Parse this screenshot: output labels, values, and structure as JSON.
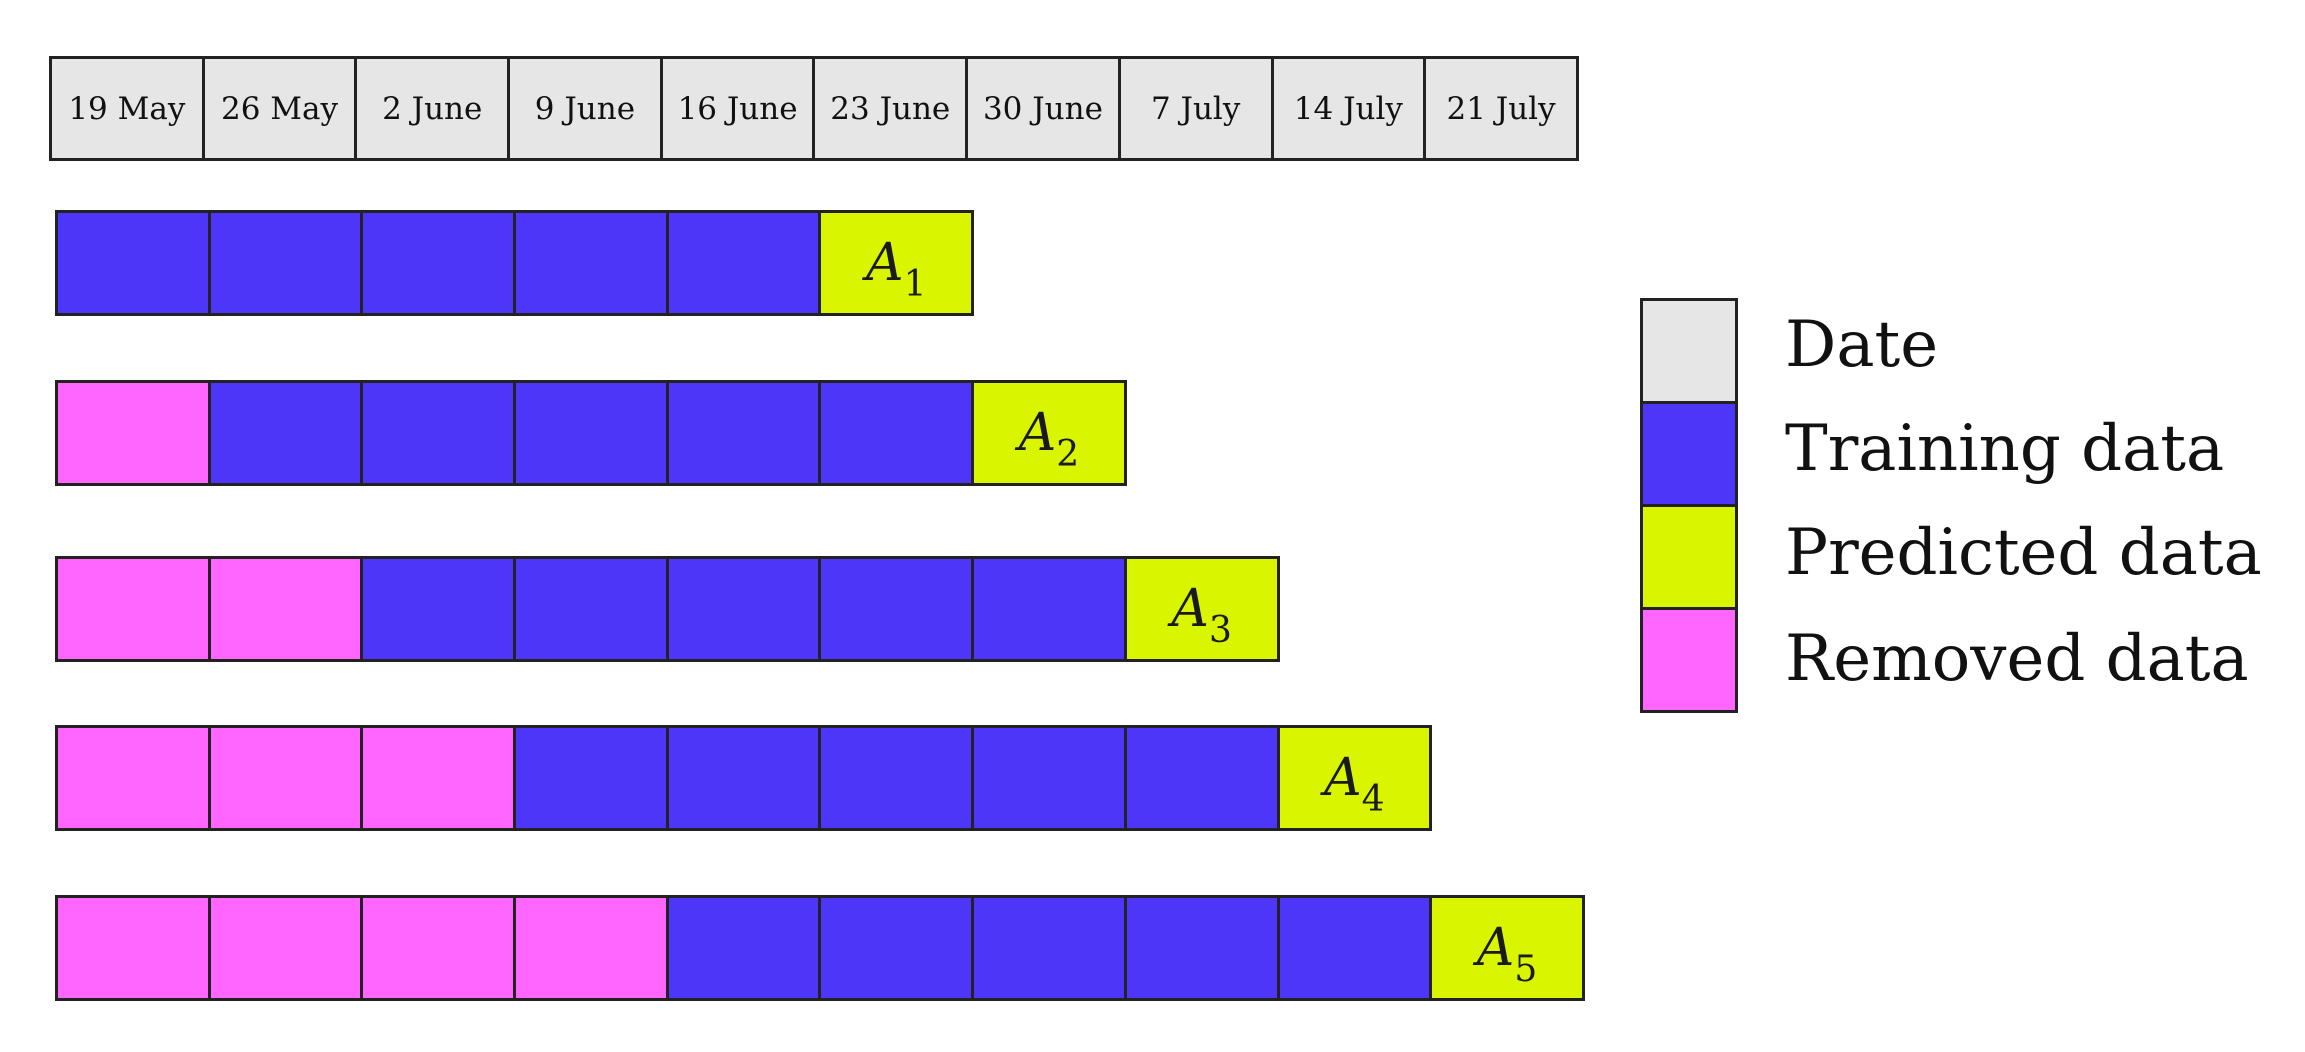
{
  "dates": [
    "19 May",
    "26 May",
    "2 June",
    "9 June",
    "16 June",
    "23 June",
    "30 June",
    "7 July",
    "14 July",
    "21 July"
  ],
  "rows": [
    {
      "removed": 0,
      "training": 5,
      "predicted_label": "A",
      "predicted_sub": "1"
    },
    {
      "removed": 1,
      "training": 5,
      "predicted_label": "A",
      "predicted_sub": "2"
    },
    {
      "removed": 2,
      "training": 5,
      "predicted_label": "A",
      "predicted_sub": "3"
    },
    {
      "removed": 3,
      "training": 5,
      "predicted_label": "A",
      "predicted_sub": "4"
    },
    {
      "removed": 4,
      "training": 5,
      "predicted_label": "A",
      "predicted_sub": "5"
    }
  ],
  "legend": [
    {
      "label": "Date",
      "color": "#e6e6e6"
    },
    {
      "label": "Training data",
      "color": "#4d36f7"
    },
    {
      "label": "Predicted data",
      "color": "#d9f500"
    },
    {
      "label": "Removed data",
      "color": "#ff66ff"
    }
  ]
}
